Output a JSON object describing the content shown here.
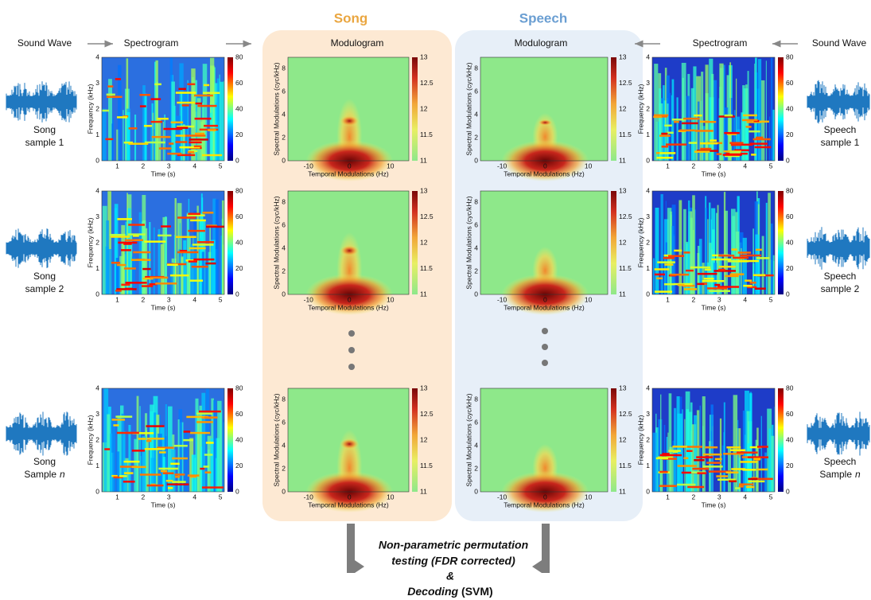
{
  "titles": {
    "song": "Song",
    "speech": "Speech"
  },
  "flow": {
    "sound_wave_left": "Sound Wave",
    "spectrogram_left": "Spectrogram",
    "modulogram_song": "Modulogram",
    "modulogram_speech": "Modulogram",
    "spectrogram_right": "Spectrogram",
    "sound_wave_right": "Sound Wave"
  },
  "song_samples": [
    [
      "Song",
      "sample 1"
    ],
    [
      "Song",
      "sample 2"
    ],
    [
      "Song",
      "Sample",
      "n"
    ]
  ],
  "speech_samples": [
    [
      "Speech",
      "sample 1"
    ],
    [
      "Speech",
      "sample 2"
    ],
    [
      "Speech",
      "Sample",
      "n"
    ]
  ],
  "spectrogram_axes": {
    "ylabel": "Frequency (kHz)",
    "xlabel": "Time (s)",
    "xticks": [
      "1",
      "2",
      "3",
      "4",
      "5"
    ],
    "yticks": [
      "0",
      "1",
      "2",
      "3",
      "4"
    ],
    "cbar_ticks": [
      "0",
      "20",
      "40",
      "60",
      "80"
    ]
  },
  "modulogram_axes": {
    "ylabel": "Spectral Modulations (cyc/kHz)",
    "xlabel": "Temporal Modulations (Hz)",
    "xticks": [
      "-10",
      "0",
      "10"
    ],
    "yticks": [
      "0",
      "2",
      "4",
      "6",
      "8"
    ],
    "cbar_ticks": [
      "11",
      "11.5",
      "12",
      "12.5",
      "13"
    ]
  },
  "footer": {
    "line1": "Non-parametric permutation",
    "line2": "testing (FDR corrected)",
    "line3": "&",
    "line4": "Decoding",
    "line4_suffix": "(SVM)"
  }
}
